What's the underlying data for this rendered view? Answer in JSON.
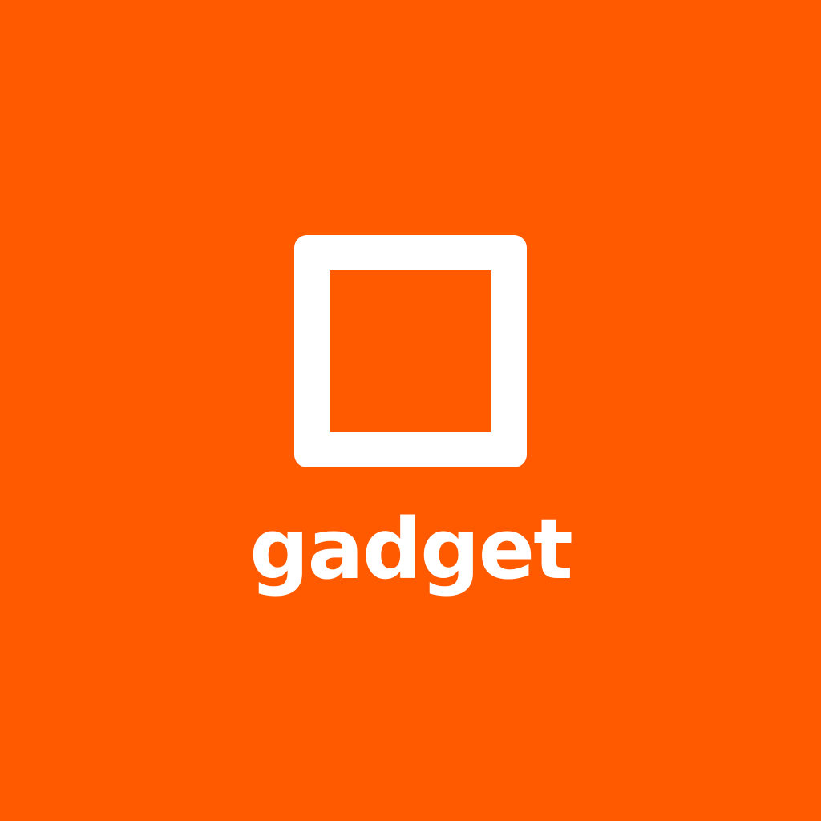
{
  "brand": {
    "name": "gadget",
    "icon": "square-outline-icon"
  },
  "colors": {
    "background": "#ff5a00",
    "foreground": "#ffffff"
  }
}
